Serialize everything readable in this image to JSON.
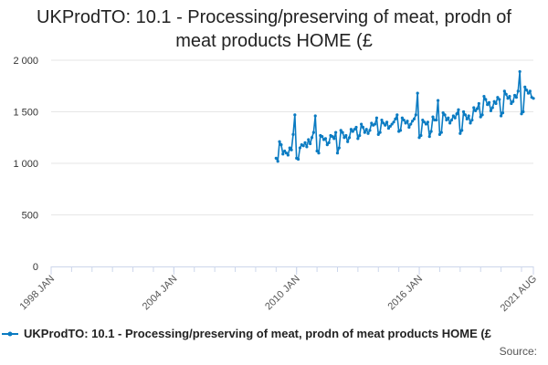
{
  "chart_data": {
    "type": "line",
    "title_lines": [
      "UKProdTO: 10.1 - Processing/preserving of meat, prodn of",
      "meat products HOME (£"
    ],
    "xlabel": "",
    "ylabel": "",
    "x_range": [
      1998.0,
      2021.58
    ],
    "ylim": [
      0,
      2000
    ],
    "y_ticks": [
      0,
      500,
      1000,
      1500,
      2000
    ],
    "y_tick_labels": [
      "0",
      "500",
      "1 000",
      "1 500",
      "2 000"
    ],
    "x_ticks": [
      {
        "x": 1998.0,
        "label": "1998 JAN"
      },
      {
        "x": 2004.0,
        "label": "2004 JAN"
      },
      {
        "x": 2010.0,
        "label": "2010 JAN"
      },
      {
        "x": 2016.0,
        "label": "2016 JAN"
      },
      {
        "x": 2021.58,
        "label": "2021 AUG"
      }
    ],
    "grid": true,
    "legend_position": "bottom",
    "series": [
      {
        "name": "UKProdTO: 10.1 - Processing/preserving of meat, prodn of meat products HOME (£",
        "color": "#0a7bc2",
        "start": 2009.0,
        "step": 0.08333,
        "values": [
          1050,
          1020,
          1210,
          1180,
          1090,
          1120,
          1100,
          1080,
          1150,
          1130,
          1280,
          1470,
          1050,
          1040,
          1150,
          1180,
          1170,
          1200,
          1160,
          1230,
          1190,
          1250,
          1300,
          1460,
          1120,
          1100,
          1270,
          1260,
          1230,
          1240,
          1180,
          1200,
          1270,
          1260,
          1240,
          1300,
          1100,
          1150,
          1320,
          1300,
          1250,
          1270,
          1210,
          1250,
          1330,
          1310,
          1330,
          1350,
          1240,
          1270,
          1380,
          1350,
          1300,
          1330,
          1290,
          1320,
          1390,
          1370,
          1380,
          1440,
          1280,
          1300,
          1420,
          1390,
          1370,
          1400,
          1340,
          1360,
          1380,
          1400,
          1430,
          1470,
          1310,
          1320,
          1440,
          1420,
          1390,
          1410,
          1350,
          1380,
          1410,
          1430,
          1470,
          1680,
          1250,
          1270,
          1420,
          1400,
          1380,
          1400,
          1260,
          1310,
          1450,
          1420,
          1420,
          1610,
          1280,
          1300,
          1490,
          1470,
          1420,
          1440,
          1390,
          1420,
          1460,
          1440,
          1480,
          1520,
          1290,
          1320,
          1500,
          1470,
          1430,
          1460,
          1390,
          1420,
          1540,
          1510,
          1530,
          1580,
          1450,
          1470,
          1650,
          1620,
          1570,
          1590,
          1510,
          1540,
          1600,
          1580,
          1640,
          1620,
          1460,
          1490,
          1700,
          1670,
          1630,
          1650,
          1580,
          1600,
          1660,
          1640,
          1700,
          1890,
          1480,
          1500,
          1740,
          1710,
          1680,
          1700,
          1640,
          1630
        ]
      }
    ]
  },
  "source_label": "Source:"
}
